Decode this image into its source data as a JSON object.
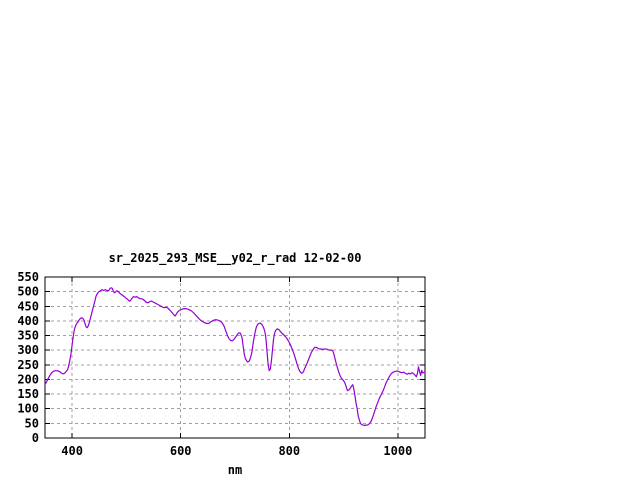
{
  "window": {
    "background": "#ffffff"
  },
  "chart_data": {
    "type": "line",
    "title": "sr_2025_293_MSE__y02_r_rad 12-02-00",
    "xlabel": "nm",
    "ylabel": "",
    "xlim": [
      350,
      1050
    ],
    "ylim": [
      0,
      550
    ],
    "x_ticks": [
      400,
      600,
      800,
      1000
    ],
    "y_ticks": [
      0,
      50,
      100,
      150,
      200,
      250,
      300,
      350,
      400,
      450,
      500,
      550
    ],
    "grid": true,
    "legend": "none",
    "line_color": "#9400d3",
    "grid_color": "#a0a0a0",
    "border_color": "#000000",
    "series": [
      {
        "points": [
          [
            350,
            183
          ],
          [
            353,
            192
          ],
          [
            356,
            204
          ],
          [
            359,
            214
          ],
          [
            362,
            222
          ],
          [
            365,
            227
          ],
          [
            368,
            230
          ],
          [
            371,
            230
          ],
          [
            374,
            229
          ],
          [
            377,
            227
          ],
          [
            380,
            222
          ],
          [
            383,
            219
          ],
          [
            386,
            221
          ],
          [
            389,
            227
          ],
          [
            392,
            235
          ],
          [
            394,
            250
          ],
          [
            396,
            268
          ],
          [
            398,
            290
          ],
          [
            400,
            318
          ],
          [
            402,
            346
          ],
          [
            404,
            369
          ],
          [
            406,
            382
          ],
          [
            408,
            390
          ],
          [
            411,
            397
          ],
          [
            414,
            406
          ],
          [
            416,
            409
          ],
          [
            418,
            411
          ],
          [
            420,
            408
          ],
          [
            422,
            402
          ],
          [
            424,
            388
          ],
          [
            426,
            379
          ],
          [
            428,
            377
          ],
          [
            430,
            384
          ],
          [
            432,
            396
          ],
          [
            434,
            412
          ],
          [
            436,
            426
          ],
          [
            438,
            441
          ],
          [
            440,
            455
          ],
          [
            442,
            468
          ],
          [
            444,
            484
          ],
          [
            446,
            492
          ],
          [
            449,
            499
          ],
          [
            452,
            503
          ],
          [
            455,
            507
          ],
          [
            458,
            504
          ],
          [
            461,
            507
          ],
          [
            464,
            504
          ],
          [
            467,
            503
          ],
          [
            470,
            511
          ],
          [
            472,
            513
          ],
          [
            474,
            511
          ],
          [
            476,
            501
          ],
          [
            478,
            496
          ],
          [
            480,
            499
          ],
          [
            482,
            503
          ],
          [
            484,
            502
          ],
          [
            486,
            498
          ],
          [
            488,
            494
          ],
          [
            490,
            491
          ],
          [
            493,
            487
          ],
          [
            496,
            483
          ],
          [
            499,
            478
          ],
          [
            502,
            474
          ],
          [
            504,
            470
          ],
          [
            506,
            467
          ],
          [
            508,
            471
          ],
          [
            510,
            477
          ],
          [
            513,
            483
          ],
          [
            516,
            481
          ],
          [
            519,
            483
          ],
          [
            522,
            479
          ],
          [
            525,
            476
          ],
          [
            528,
            476
          ],
          [
            531,
            473
          ],
          [
            534,
            468
          ],
          [
            537,
            463
          ],
          [
            540,
            462
          ],
          [
            543,
            466
          ],
          [
            546,
            468
          ],
          [
            549,
            465
          ],
          [
            552,
            462
          ],
          [
            555,
            459
          ],
          [
            558,
            456
          ],
          [
            561,
            453
          ],
          [
            564,
            450
          ],
          [
            567,
            447
          ],
          [
            570,
            445
          ],
          [
            573,
            447
          ],
          [
            576,
            444
          ],
          [
            579,
            439
          ],
          [
            582,
            433
          ],
          [
            585,
            426
          ],
          [
            588,
            419
          ],
          [
            590,
            417
          ],
          [
            592,
            424
          ],
          [
            595,
            432
          ],
          [
            598,
            436
          ],
          [
            601,
            439
          ],
          [
            604,
            441
          ],
          [
            608,
            442
          ],
          [
            612,
            441
          ],
          [
            616,
            438
          ],
          [
            620,
            434
          ],
          [
            624,
            427
          ],
          [
            628,
            419
          ],
          [
            632,
            411
          ],
          [
            636,
            403
          ],
          [
            640,
            398
          ],
          [
            644,
            394
          ],
          [
            648,
            391
          ],
          [
            652,
            392
          ],
          [
            656,
            397
          ],
          [
            660,
            402
          ],
          [
            664,
            404
          ],
          [
            668,
            403
          ],
          [
            672,
            400
          ],
          [
            676,
            394
          ],
          [
            680,
            382
          ],
          [
            683,
            366
          ],
          [
            686,
            351
          ],
          [
            689,
            340
          ],
          [
            692,
            333
          ],
          [
            695,
            332
          ],
          [
            698,
            337
          ],
          [
            701,
            344
          ],
          [
            704,
            353
          ],
          [
            707,
            359
          ],
          [
            710,
            358
          ],
          [
            713,
            342
          ],
          [
            715,
            315
          ],
          [
            717,
            288
          ],
          [
            719,
            272
          ],
          [
            721,
            265
          ],
          [
            723,
            260
          ],
          [
            725,
            261
          ],
          [
            727,
            266
          ],
          [
            729,
            277
          ],
          [
            731,
            291
          ],
          [
            733,
            318
          ],
          [
            735,
            341
          ],
          [
            737,
            361
          ],
          [
            739,
            377
          ],
          [
            741,
            386
          ],
          [
            743,
            390
          ],
          [
            746,
            393
          ],
          [
            749,
            389
          ],
          [
            751,
            383
          ],
          [
            753,
            375
          ],
          [
            755,
            362
          ],
          [
            757,
            341
          ],
          [
            759,
            296
          ],
          [
            761,
            252
          ],
          [
            763,
            230
          ],
          [
            765,
            235
          ],
          [
            767,
            263
          ],
          [
            769,
            302
          ],
          [
            771,
            337
          ],
          [
            773,
            358
          ],
          [
            775,
            368
          ],
          [
            778,
            373
          ],
          [
            781,
            370
          ],
          [
            784,
            363
          ],
          [
            787,
            357
          ],
          [
            790,
            352
          ],
          [
            793,
            346
          ],
          [
            796,
            339
          ],
          [
            799,
            330
          ],
          [
            802,
            319
          ],
          [
            805,
            305
          ],
          [
            808,
            291
          ],
          [
            811,
            273
          ],
          [
            814,
            254
          ],
          [
            817,
            237
          ],
          [
            820,
            226
          ],
          [
            823,
            221
          ],
          [
            826,
            226
          ],
          [
            829,
            240
          ],
          [
            832,
            252
          ],
          [
            835,
            266
          ],
          [
            838,
            280
          ],
          [
            841,
            293
          ],
          [
            844,
            303
          ],
          [
            847,
            310
          ],
          [
            850,
            310
          ],
          [
            853,
            306
          ],
          [
            856,
            304
          ],
          [
            859,
            304
          ],
          [
            862,
            303
          ],
          [
            865,
            304
          ],
          [
            868,
            304
          ],
          [
            871,
            302
          ],
          [
            874,
            300
          ],
          [
            877,
            301
          ],
          [
            880,
            298
          ],
          [
            882,
            288
          ],
          [
            884,
            273
          ],
          [
            887,
            251
          ],
          [
            890,
            232
          ],
          [
            893,
            215
          ],
          [
            896,
            204
          ],
          [
            899,
            198
          ],
          [
            902,
            190
          ],
          [
            905,
            174
          ],
          [
            907,
            162
          ],
          [
            910,
            164
          ],
          [
            913,
            172
          ],
          [
            915,
            178
          ],
          [
            917,
            182
          ],
          [
            919,
            166
          ],
          [
            921,
            143
          ],
          [
            923,
            118
          ],
          [
            925,
            101
          ],
          [
            927,
            76
          ],
          [
            929,
            62
          ],
          [
            931,
            51
          ],
          [
            933,
            46
          ],
          [
            936,
            44
          ],
          [
            939,
            43
          ],
          [
            942,
            44
          ],
          [
            945,
            45
          ],
          [
            948,
            50
          ],
          [
            951,
            58
          ],
          [
            954,
            73
          ],
          [
            957,
            90
          ],
          [
            960,
            107
          ],
          [
            963,
            122
          ],
          [
            966,
            136
          ],
          [
            969,
            147
          ],
          [
            972,
            158
          ],
          [
            975,
            172
          ],
          [
            978,
            187
          ],
          [
            981,
            198
          ],
          [
            984,
            209
          ],
          [
            987,
            218
          ],
          [
            990,
            223
          ],
          [
            993,
            226
          ],
          [
            996,
            228
          ],
          [
            999,
            229
          ],
          [
            1002,
            227
          ],
          [
            1005,
            224
          ],
          [
            1008,
            223
          ],
          [
            1011,
            225
          ],
          [
            1014,
            220
          ],
          [
            1017,
            218
          ],
          [
            1020,
            221
          ],
          [
            1023,
            219
          ],
          [
            1026,
            223
          ],
          [
            1029,
            220
          ],
          [
            1032,
            214
          ],
          [
            1034,
            209
          ],
          [
            1036,
            220
          ],
          [
            1038,
            243
          ],
          [
            1040,
            226
          ],
          [
            1042,
            214
          ],
          [
            1044,
            231
          ],
          [
            1046,
            222
          ],
          [
            1048,
            224
          ],
          [
            1050,
            224
          ]
        ]
      }
    ]
  }
}
